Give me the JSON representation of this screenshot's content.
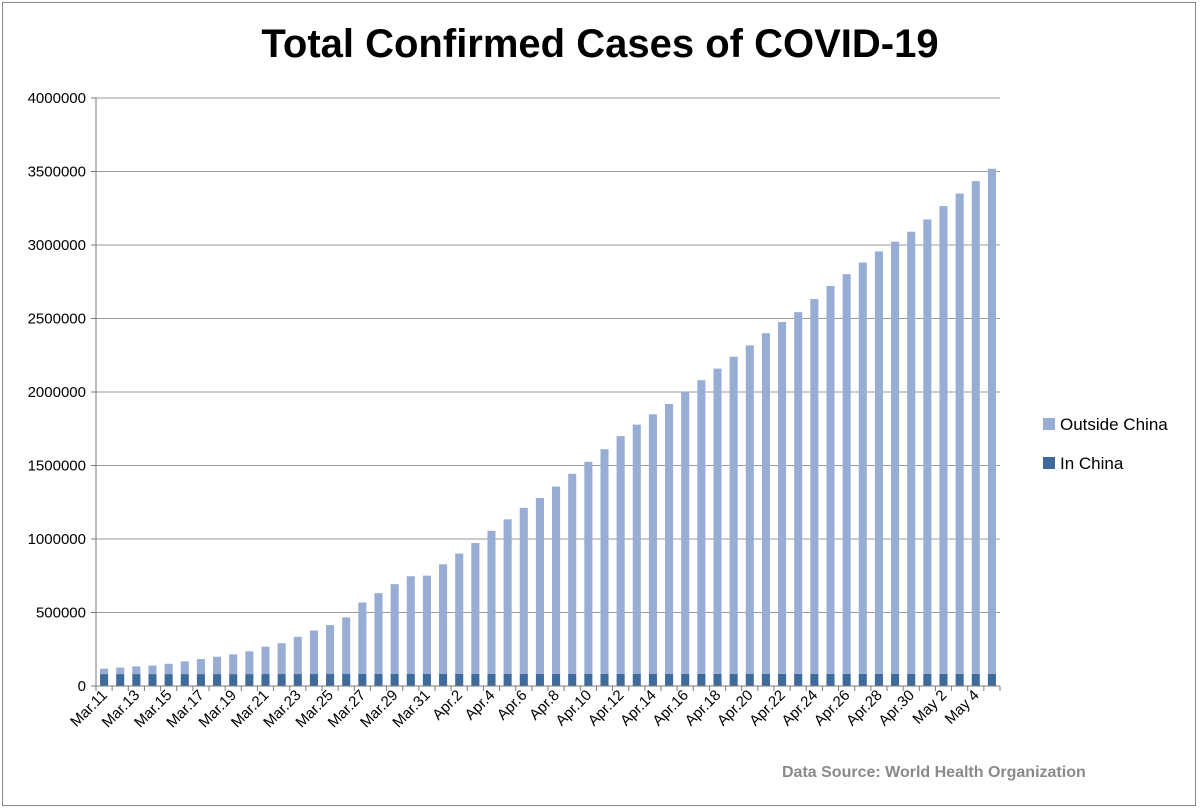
{
  "chart_data": {
    "type": "bar",
    "stacked": true,
    "title": "Total Confirmed Cases of COVID-19",
    "source": "Data Source: World Health Organization",
    "xlabel": "",
    "ylabel": "",
    "ylim": [
      0,
      4000000
    ],
    "yticks": [
      0,
      500000,
      1000000,
      1500000,
      2000000,
      2500000,
      3000000,
      3500000,
      4000000
    ],
    "grid": true,
    "legend_position": "right",
    "categories": [
      "Mar.11",
      "Mar.12",
      "Mar.13",
      "Mar.14",
      "Mar.15",
      "Mar.16",
      "Mar.17",
      "Mar.18",
      "Mar.19",
      "Mar.20",
      "Mar.21",
      "Mar.22",
      "Mar.23",
      "Mar.24",
      "Mar.25",
      "Mar.26",
      "Mar.27",
      "Mar.28",
      "Mar.29",
      "Mar.30",
      "Mar.31",
      "Apr.1",
      "Apr.2",
      "Apr.3",
      "Apr.4",
      "Apr.5",
      "Apr.6",
      "Apr.7",
      "Apr.8",
      "Apr.9",
      "Apr.10",
      "Apr.11",
      "Apr.12",
      "Apr.13",
      "Apr.14",
      "Apr.15",
      "Apr.16",
      "Apr.17",
      "Apr.18",
      "Apr.19",
      "Apr.20",
      "Apr.21",
      "Apr.22",
      "Apr.23",
      "Apr.24",
      "Apr.25",
      "Apr.26",
      "Apr.27",
      "Apr.28",
      "Apr.29",
      "Apr.30",
      "May 1",
      "May 2",
      "May 3",
      "May 4",
      "May 5"
    ],
    "visible_tick_labels": [
      "Mar.11",
      "Mar.13",
      "Mar.15",
      "Mar.17",
      "Mar.19",
      "Mar.21",
      "Mar.23",
      "Mar.25",
      "Mar.27",
      "Mar.29",
      "Mar.31",
      "Apr.2",
      "Apr.4",
      "Apr.6",
      "Apr.8",
      "Apr.10",
      "Apr.12",
      "Apr.14",
      "Apr.16",
      "Apr.18",
      "Apr.20",
      "Apr.22",
      "Apr.24",
      "Apr.26",
      "Apr.28",
      "Apr.30",
      "May 2",
      "May 4"
    ],
    "series": [
      {
        "name": "In China",
        "color": "#3f6a9c",
        "values": [
          80955,
          80981,
          80995,
          81021,
          81048,
          81077,
          81116,
          81151,
          81174,
          81199,
          81236,
          81263,
          81291,
          81327,
          81347,
          81401,
          81468,
          81514,
          81554,
          81581,
          81623,
          81639,
          81667,
          81708,
          81724,
          81745,
          81754,
          81774,
          81788,
          81794,
          81798,
          81816,
          81878,
          81931,
          82051,
          82085,
          82163,
          82222,
          82243,
          82265,
          82276,
          82295,
          82310,
          82391,
          82406,
          82429,
          82448,
          82484,
          82508,
          82544,
          82572,
          82599,
          82613,
          82621,
          82630,
          82649
        ]
      },
      {
        "name": "Outside China",
        "color": "#97add3",
        "values": [
          37000,
          44000,
          52000,
          58000,
          70000,
          86000,
          102000,
          118000,
          134000,
          155000,
          186000,
          210000,
          253000,
          296000,
          333000,
          385000,
          487000,
          550000,
          611000,
          665000,
          669000,
          746000,
          819000,
          891000,
          974000,
          1052000,
          1130000,
          1197000,
          1275000,
          1362000,
          1443000,
          1529000,
          1618000,
          1696000,
          1766000,
          1836000,
          1918000,
          1998000,
          2077000,
          2158000,
          2235000,
          2318000,
          2394000,
          2461000,
          2550000,
          2639000,
          2719000,
          2798000,
          2874000,
          2940000,
          3008000,
          3091000,
          3182000,
          3268000,
          3352000,
          3436000
        ]
      }
    ]
  }
}
